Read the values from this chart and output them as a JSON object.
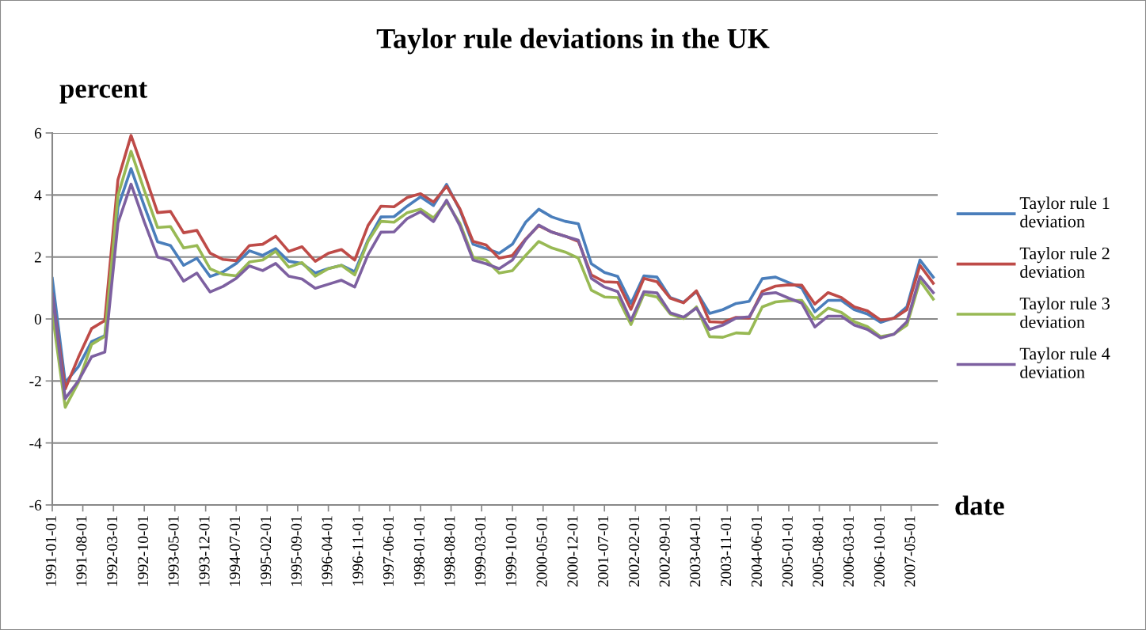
{
  "chart_data": {
    "type": "line",
    "title": "Taylor rule deviations in the UK",
    "ylabel": "percent",
    "xlabel": "date",
    "x": [
      "1991-01",
      "1991-04",
      "1991-07",
      "1991-10",
      "1992-01",
      "1992-04",
      "1992-07",
      "1992-10",
      "1993-01",
      "1993-04",
      "1993-07",
      "1993-10",
      "1994-01",
      "1994-04",
      "1994-07",
      "1994-10",
      "1995-01",
      "1995-04",
      "1995-07",
      "1995-10",
      "1996-01",
      "1996-04",
      "1996-07",
      "1996-10",
      "1997-01",
      "1997-04",
      "1997-07",
      "1997-10",
      "1998-01",
      "1998-04",
      "1998-07",
      "1998-10",
      "1999-01",
      "1999-04",
      "1999-07",
      "1999-10",
      "2000-01",
      "2000-04",
      "2000-07",
      "2000-10",
      "2001-01",
      "2001-04",
      "2001-07",
      "2001-10",
      "2002-01",
      "2002-04",
      "2002-07",
      "2002-10",
      "2003-01",
      "2003-04",
      "2003-07",
      "2003-10",
      "2004-01",
      "2004-04",
      "2004-07",
      "2004-10",
      "2005-01",
      "2005-04",
      "2005-07",
      "2005-10",
      "2006-01",
      "2006-04",
      "2006-07",
      "2006-10",
      "2007-01",
      "2007-04",
      "2007-07",
      "2007-10"
    ],
    "series": [
      {
        "name": "Taylor rule 1\ndeviation",
        "color": "#4a7ebb",
        "values": [
          1.31,
          -2.05,
          -1.54,
          -0.73,
          -0.54,
          3.6,
          4.85,
          3.64,
          2.49,
          2.37,
          1.73,
          1.96,
          1.37,
          1.52,
          1.79,
          2.2,
          2.05,
          2.27,
          1.86,
          1.79,
          1.48,
          1.63,
          1.73,
          1.52,
          2.54,
          3.29,
          3.3,
          3.64,
          3.94,
          3.66,
          4.34,
          3.52,
          2.41,
          2.27,
          2.12,
          2.41,
          3.12,
          3.54,
          3.29,
          3.15,
          3.07,
          1.78,
          1.5,
          1.37,
          0.5,
          1.39,
          1.35,
          0.69,
          0.54,
          0.88,
          0.18,
          0.3,
          0.5,
          0.57,
          1.3,
          1.35,
          1.17,
          1.0,
          0.23,
          0.6,
          0.6,
          0.3,
          0.16,
          -0.11,
          0.03,
          0.39,
          1.9,
          1.35
        ]
      },
      {
        "name": "Taylor rule 2\ndeviation",
        "color": "#be4b48",
        "values": [
          0.8,
          -2.26,
          -1.24,
          -0.31,
          -0.05,
          4.49,
          5.92,
          4.7,
          3.43,
          3.47,
          2.78,
          2.86,
          2.12,
          1.92,
          1.88,
          2.37,
          2.41,
          2.67,
          2.18,
          2.33,
          1.86,
          2.12,
          2.24,
          1.9,
          3.01,
          3.64,
          3.62,
          3.92,
          4.04,
          3.77,
          4.28,
          3.56,
          2.5,
          2.39,
          1.96,
          2.05,
          2.58,
          3.01,
          2.8,
          2.67,
          2.5,
          1.42,
          1.2,
          1.18,
          0.31,
          1.31,
          1.2,
          0.67,
          0.52,
          0.91,
          -0.09,
          -0.11,
          0.05,
          0.03,
          0.89,
          1.06,
          1.1,
          1.09,
          0.48,
          0.85,
          0.69,
          0.39,
          0.26,
          -0.04,
          0.02,
          0.3,
          1.73,
          1.15
        ]
      },
      {
        "name": "Taylor rule 3\ndeviation",
        "color": "#98b954",
        "values": [
          0.2,
          -2.85,
          -2.05,
          -0.82,
          -0.56,
          3.98,
          5.41,
          4.15,
          2.95,
          2.98,
          2.29,
          2.37,
          1.62,
          1.44,
          1.39,
          1.84,
          1.9,
          2.18,
          1.67,
          1.82,
          1.38,
          1.62,
          1.73,
          1.42,
          2.5,
          3.15,
          3.12,
          3.43,
          3.54,
          3.26,
          3.77,
          3.09,
          1.99,
          1.9,
          1.48,
          1.56,
          2.05,
          2.5,
          2.29,
          2.16,
          1.96,
          0.93,
          0.71,
          0.69,
          -0.18,
          0.8,
          0.71,
          0.16,
          0.01,
          0.39,
          -0.57,
          -0.59,
          -0.45,
          -0.47,
          0.39,
          0.55,
          0.59,
          0.6,
          0,
          0.35,
          0.21,
          -0.09,
          -0.25,
          -0.57,
          -0.49,
          -0.2,
          1.24,
          0.64
        ]
      },
      {
        "name": "Taylor rule 4\ndeviation",
        "color": "#7d60a0",
        "values": [
          0.8,
          -2.57,
          -2.0,
          -1.22,
          -1.07,
          3.09,
          4.35,
          3.13,
          2.0,
          1.88,
          1.22,
          1.48,
          0.87,
          1.05,
          1.31,
          1.71,
          1.56,
          1.79,
          1.38,
          1.29,
          0.99,
          1.12,
          1.25,
          1.03,
          2.07,
          2.8,
          2.81,
          3.24,
          3.46,
          3.14,
          3.83,
          3.01,
          1.9,
          1.78,
          1.62,
          1.9,
          2.56,
          3.03,
          2.8,
          2.67,
          2.54,
          1.31,
          1.03,
          0.88,
          -0.05,
          0.88,
          0.84,
          0.2,
          0.06,
          0.35,
          -0.34,
          -0.2,
          0.03,
          0.07,
          0.8,
          0.85,
          0.67,
          0.51,
          -0.26,
          0.09,
          0.09,
          -0.2,
          -0.34,
          -0.61,
          -0.49,
          -0.09,
          1.37,
          0.85
        ]
      }
    ],
    "xlim": [
      "1991-01-01",
      "2007-11-01"
    ],
    "xticks": [
      "1991-01-01",
      "1991-08-01",
      "1992-03-01",
      "1992-10-01",
      "1993-05-01",
      "1993-12-01",
      "1994-07-01",
      "1995-02-01",
      "1995-09-01",
      "1996-04-01",
      "1996-11-01",
      "1997-06-01",
      "1998-01-01",
      "1998-08-01",
      "1999-03-01",
      "1999-10-01",
      "2000-05-01",
      "2000-12-01",
      "2001-07-01",
      "2002-02-01",
      "2002-09-01",
      "2003-04-01",
      "2003-11-01",
      "2004-06-01",
      "2005-01-01",
      "2005-08-01",
      "2006-03-01",
      "2006-10-01",
      "2007-05-01"
    ],
    "ylim": [
      -6,
      6
    ],
    "yticks": [
      -6,
      -4,
      -2,
      0,
      2,
      4,
      6
    ],
    "grid": "y",
    "legend": "right",
    "marker": "none",
    "line_style": "solid"
  }
}
